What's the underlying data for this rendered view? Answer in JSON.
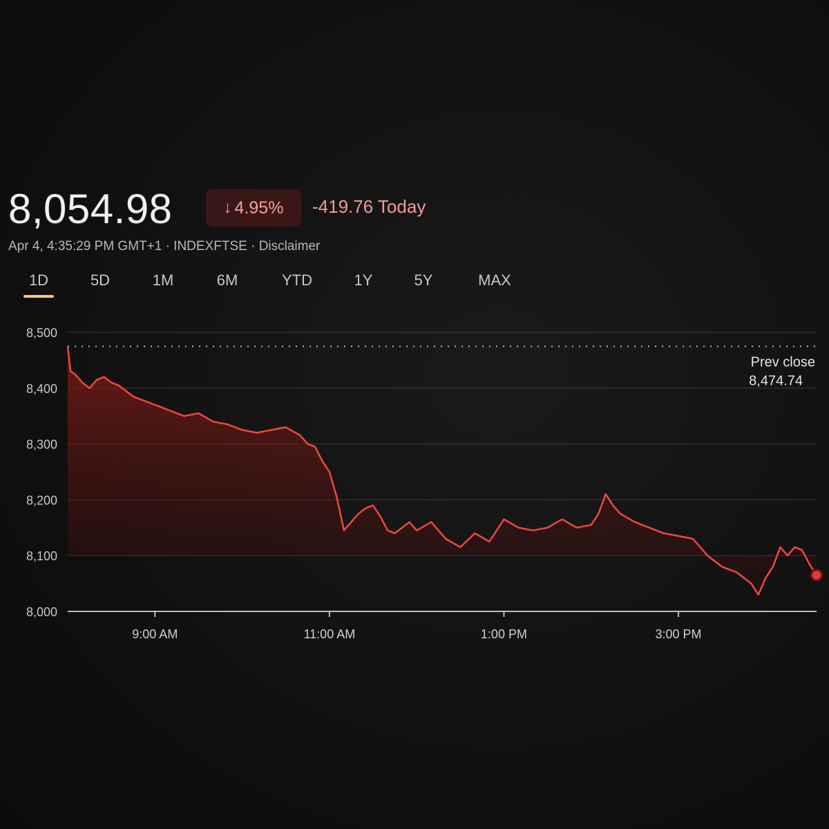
{
  "header": {
    "price": "8,054.98",
    "change_percent": "4.95%",
    "change_arrow_icon": "arrow-down-icon",
    "change_today": "-419.76 Today",
    "meta": "Apr 4, 4:35:29 PM GMT+1 · INDEXFTSE · Disclaimer"
  },
  "tabs": [
    "1D",
    "5D",
    "1M",
    "6M",
    "YTD",
    "1Y",
    "5Y",
    "MAX"
  ],
  "active_tab": "1D",
  "colors": {
    "line": "#f0483e",
    "fill": "#7a1a16",
    "accent": "#f6c87a",
    "badge_bg": "#3a1717",
    "badge_text": "#f2a0a0"
  },
  "chart_data": {
    "type": "area",
    "prev_close_label": "Prev close",
    "prev_close_value_text": "8,474.74",
    "prev_close": 8474.74,
    "ylim": [
      8000,
      8500
    ],
    "yticks": [
      8500,
      8400,
      8300,
      8200,
      8100,
      8000
    ],
    "ytick_labels": [
      "8,500",
      "8,400",
      "8,300",
      "8,200",
      "8,100",
      "8,000"
    ],
    "xlim": [
      "08:00",
      "16:35"
    ],
    "xticks": [
      "09:00",
      "11:00",
      "13:00",
      "15:00"
    ],
    "xtick_labels": [
      "9:00 AM",
      "11:00 AM",
      "1:00 PM",
      "3:00 PM"
    ],
    "grid": true,
    "series": [
      {
        "x": [
          "08:00",
          "08:02",
          "08:05",
          "08:10",
          "08:15",
          "08:20",
          "08:25",
          "08:30",
          "08:35",
          "08:40",
          "08:45",
          "08:50",
          "08:55",
          "09:00",
          "09:10",
          "09:20",
          "09:30",
          "09:40",
          "09:50",
          "10:00",
          "10:10",
          "10:20",
          "10:30",
          "10:40",
          "10:45",
          "10:50",
          "10:55",
          "11:00",
          "11:05",
          "11:10",
          "11:15",
          "11:20",
          "11:25",
          "11:30",
          "11:35",
          "11:40",
          "11:45",
          "11:50",
          "11:55",
          "12:00",
          "12:10",
          "12:20",
          "12:30",
          "12:40",
          "12:50",
          "13:00",
          "13:10",
          "13:20",
          "13:30",
          "13:40",
          "13:50",
          "14:00",
          "14:05",
          "14:10",
          "14:15",
          "14:20",
          "14:30",
          "14:40",
          "14:50",
          "15:00",
          "15:10",
          "15:20",
          "15:30",
          "15:40",
          "15:45",
          "15:50",
          "15:55",
          "16:00",
          "16:05",
          "16:10",
          "16:15",
          "16:20",
          "16:25",
          "16:30",
          "16:35"
        ],
        "y": [
          8474,
          8430,
          8425,
          8410,
          8400,
          8415,
          8420,
          8410,
          8405,
          8395,
          8385,
          8380,
          8375,
          8370,
          8360,
          8350,
          8355,
          8340,
          8335,
          8325,
          8320,
          8325,
          8330,
          8315,
          8300,
          8295,
          8270,
          8250,
          8205,
          8145,
          8160,
          8175,
          8185,
          8190,
          8170,
          8145,
          8140,
          8150,
          8160,
          8145,
          8160,
          8130,
          8115,
          8140,
          8125,
          8165,
          8150,
          8145,
          8150,
          8165,
          8150,
          8155,
          8175,
          8210,
          8190,
          8175,
          8160,
          8150,
          8140,
          8135,
          8130,
          8100,
          8080,
          8070,
          8060,
          8050,
          8030,
          8060,
          8080,
          8115,
          8100,
          8115,
          8110,
          8085,
          8065
        ]
      }
    ]
  }
}
